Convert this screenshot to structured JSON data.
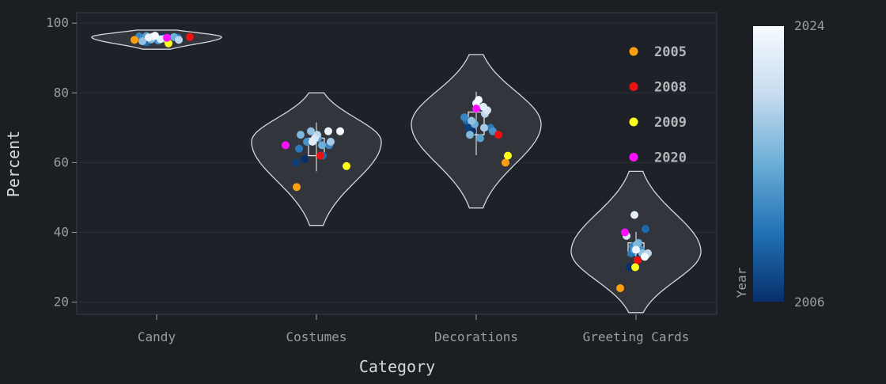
{
  "chart_data": {
    "type": "violin",
    "xlabel": "Category",
    "ylabel": "Percent",
    "ylim": [
      16.5,
      103
    ],
    "yticks": [
      20,
      40,
      60,
      80,
      100
    ],
    "categories": [
      "Candy",
      "Costumes",
      "Decorations",
      "Greeting Cards"
    ],
    "violins": [
      {
        "category": "Candy",
        "min": 92.5,
        "max": 98,
        "q1": 95,
        "median": 95.5,
        "q3": 96,
        "peak": 96
      },
      {
        "category": "Costumes",
        "min": 42,
        "max": 80,
        "q1": 62,
        "median": 65.5,
        "q3": 67,
        "peak": 66
      },
      {
        "category": "Decorations",
        "min": 47,
        "max": 91,
        "q1": 68,
        "median": 70,
        "q3": 74.5,
        "peak": 71
      },
      {
        "category": "Greeting Cards",
        "min": 17,
        "max": 57.5,
        "q1": 33.5,
        "median": 35,
        "q3": 37,
        "peak": 34.5
      }
    ],
    "points": [
      {
        "category": "Candy",
        "year": 2005,
        "value": 95.2,
        "jitter": -0.28
      },
      {
        "category": "Candy",
        "year": 2008,
        "value": 96.0,
        "jitter": 0.42
      },
      {
        "category": "Candy",
        "year": 2009,
        "value": 94.2,
        "jitter": 0.15
      },
      {
        "category": "Candy",
        "year": 2020,
        "value": 95.8,
        "jitter": 0.13
      },
      {
        "category": "Candy",
        "year": 2006,
        "value": 96.0,
        "jitter": 0.07
      },
      {
        "category": "Candy",
        "year": 2007,
        "value": 95.5,
        "jitter": -0.03
      },
      {
        "category": "Candy",
        "year": 2010,
        "value": 94.5,
        "jitter": -0.13
      },
      {
        "category": "Candy",
        "year": 2011,
        "value": 95.8,
        "jitter": 0.27
      },
      {
        "category": "Candy",
        "year": 2012,
        "value": 96.2,
        "jitter": -0.22
      },
      {
        "category": "Candy",
        "year": 2013,
        "value": 95.0,
        "jitter": 0.02
      },
      {
        "category": "Candy",
        "year": 2014,
        "value": 96.3,
        "jitter": -0.13
      },
      {
        "category": "Candy",
        "year": 2015,
        "value": 96.0,
        "jitter": 0.22
      },
      {
        "category": "Candy",
        "year": 2016,
        "value": 95.3,
        "jitter": -0.07
      },
      {
        "category": "Candy",
        "year": 2017,
        "value": 94.8,
        "jitter": -0.18
      },
      {
        "category": "Candy",
        "year": 2018,
        "value": 95.6,
        "jitter": 0.1
      },
      {
        "category": "Candy",
        "year": 2019,
        "value": 95.2,
        "jitter": 0.28
      },
      {
        "category": "Candy",
        "year": 2021,
        "value": 96.1,
        "jitter": -0.05
      },
      {
        "category": "Candy",
        "year": 2022,
        "value": 95.4,
        "jitter": 0.05
      },
      {
        "category": "Candy",
        "year": 2023,
        "value": 95.9,
        "jitter": -0.1
      },
      {
        "category": "Candy",
        "year": 2024,
        "value": 96.4,
        "jitter": -0.02
      },
      {
        "category": "Costumes",
        "year": 2005,
        "value": 53.0,
        "jitter": -0.25
      },
      {
        "category": "Costumes",
        "year": 2008,
        "value": 62.0,
        "jitter": 0.05
      },
      {
        "category": "Costumes",
        "year": 2009,
        "value": 59.0,
        "jitter": 0.38
      },
      {
        "category": "Costumes",
        "year": 2020,
        "value": 65.0,
        "jitter": -0.39
      },
      {
        "category": "Costumes",
        "year": 2006,
        "value": 61.0,
        "jitter": -0.15
      },
      {
        "category": "Costumes",
        "year": 2007,
        "value": 60.0,
        "jitter": -0.26
      },
      {
        "category": "Costumes",
        "year": 2010,
        "value": 62.0,
        "jitter": 0.08
      },
      {
        "category": "Costumes",
        "year": 2011,
        "value": 64.0,
        "jitter": -0.22
      },
      {
        "category": "Costumes",
        "year": 2012,
        "value": 65.0,
        "jitter": 0.16
      },
      {
        "category": "Costumes",
        "year": 2013,
        "value": 66.0,
        "jitter": -0.12
      },
      {
        "category": "Costumes",
        "year": 2014,
        "value": 67.0,
        "jitter": 0.02
      },
      {
        "category": "Costumes",
        "year": 2015,
        "value": 65.0,
        "jitter": 0.07
      },
      {
        "category": "Costumes",
        "year": 2016,
        "value": 68.0,
        "jitter": -0.2
      },
      {
        "category": "Costumes",
        "year": 2017,
        "value": 69.0,
        "jitter": -0.07
      },
      {
        "category": "Costumes",
        "year": 2018,
        "value": 66.0,
        "jitter": 0.18
      },
      {
        "category": "Costumes",
        "year": 2019,
        "value": 68.0,
        "jitter": 0.01
      },
      {
        "category": "Costumes",
        "year": 2021,
        "value": 67.0,
        "jitter": -0.02
      },
      {
        "category": "Costumes",
        "year": 2022,
        "value": 66.0,
        "jitter": -0.05
      },
      {
        "category": "Costumes",
        "year": 2023,
        "value": 69.0,
        "jitter": 0.15
      },
      {
        "category": "Costumes",
        "year": 2024,
        "value": 69.0,
        "jitter": 0.3
      },
      {
        "category": "Decorations",
        "year": 2005,
        "value": 60.0,
        "jitter": 0.37
      },
      {
        "category": "Decorations",
        "year": 2008,
        "value": 68.0,
        "jitter": 0.28
      },
      {
        "category": "Decorations",
        "year": 2009,
        "value": 62.0,
        "jitter": 0.4
      },
      {
        "category": "Decorations",
        "year": 2020,
        "value": 75.5,
        "jitter": 0.0
      },
      {
        "category": "Decorations",
        "year": 2006,
        "value": 69.0,
        "jitter": -0.05
      },
      {
        "category": "Decorations",
        "year": 2007,
        "value": 70.0,
        "jitter": -0.1
      },
      {
        "category": "Decorations",
        "year": 2010,
        "value": 72.0,
        "jitter": -0.12
      },
      {
        "category": "Decorations",
        "year": 2011,
        "value": 70.0,
        "jitter": 0.18
      },
      {
        "category": "Decorations",
        "year": 2012,
        "value": 73.0,
        "jitter": -0.15
      },
      {
        "category": "Decorations",
        "year": 2013,
        "value": 69.0,
        "jitter": 0.21
      },
      {
        "category": "Decorations",
        "year": 2014,
        "value": 67.0,
        "jitter": 0.05
      },
      {
        "category": "Decorations",
        "year": 2015,
        "value": 71.0,
        "jitter": -0.02
      },
      {
        "category": "Decorations",
        "year": 2016,
        "value": 68.0,
        "jitter": -0.08
      },
      {
        "category": "Decorations",
        "year": 2017,
        "value": 72.0,
        "jitter": -0.06
      },
      {
        "category": "Decorations",
        "year": 2018,
        "value": 70.0,
        "jitter": 0.1
      },
      {
        "category": "Decorations",
        "year": 2019,
        "value": 74.0,
        "jitter": 0.11
      },
      {
        "category": "Decorations",
        "year": 2021,
        "value": 75.0,
        "jitter": 0.14
      },
      {
        "category": "Decorations",
        "year": 2022,
        "value": 76.0,
        "jitter": 0.09
      },
      {
        "category": "Decorations",
        "year": 2023,
        "value": 77.0,
        "jitter": 0.0
      },
      {
        "category": "Decorations",
        "year": 2024,
        "value": 78.0,
        "jitter": 0.03
      },
      {
        "category": "Greeting Cards",
        "year": 2005,
        "value": 24.0,
        "jitter": -0.2
      },
      {
        "category": "Greeting Cards",
        "year": 2008,
        "value": 32.0,
        "jitter": 0.02
      },
      {
        "category": "Greeting Cards",
        "year": 2009,
        "value": 30.0,
        "jitter": -0.01
      },
      {
        "category": "Greeting Cards",
        "year": 2020,
        "value": 40.0,
        "jitter": -0.14
      },
      {
        "category": "Greeting Cards",
        "year": 2006,
        "value": 30.0,
        "jitter": -0.08
      },
      {
        "category": "Greeting Cards",
        "year": 2007,
        "value": 33.0,
        "jitter": 0.05
      },
      {
        "category": "Greeting Cards",
        "year": 2010,
        "value": 41.0,
        "jitter": 0.12
      },
      {
        "category": "Greeting Cards",
        "year": 2011,
        "value": 34.0,
        "jitter": -0.06
      },
      {
        "category": "Greeting Cards",
        "year": 2012,
        "value": 36.0,
        "jitter": -0.04
      },
      {
        "category": "Greeting Cards",
        "year": 2013,
        "value": 35.0,
        "jitter": 0.06
      },
      {
        "category": "Greeting Cards",
        "year": 2014,
        "value": 35.0,
        "jitter": -0.02
      },
      {
        "category": "Greeting Cards",
        "year": 2015,
        "value": 37.0,
        "jitter": 0.03
      },
      {
        "category": "Greeting Cards",
        "year": 2016,
        "value": 36.5,
        "jitter": 0.01
      },
      {
        "category": "Greeting Cards",
        "year": 2017,
        "value": 34.0,
        "jitter": 0.08
      },
      {
        "category": "Greeting Cards",
        "year": 2018,
        "value": 33.5,
        "jitter": 0.13
      },
      {
        "category": "Greeting Cards",
        "year": 2019,
        "value": 34.0,
        "jitter": 0.15
      },
      {
        "category": "Greeting Cards",
        "year": 2021,
        "value": 39.0,
        "jitter": -0.12
      },
      {
        "category": "Greeting Cards",
        "year": 2022,
        "value": 45.0,
        "jitter": -0.02
      },
      {
        "category": "Greeting Cards",
        "year": 2023,
        "value": 35.0,
        "jitter": 0.0
      },
      {
        "category": "Greeting Cards",
        "year": 2024,
        "value": 33.0,
        "jitter": 0.11
      }
    ],
    "highlight_legend": [
      {
        "year": "2005",
        "color": "#ff9f0f"
      },
      {
        "year": "2008",
        "color": "#ee1111"
      },
      {
        "year": "2009",
        "color": "#ffff19"
      },
      {
        "year": "2020",
        "color": "#ff10ff"
      }
    ],
    "colorbar": {
      "label": "Year",
      "min_label": "2006",
      "max_label": "2024",
      "min": 2006,
      "max": 2024,
      "colors": [
        "#08306b",
        "#2171b5",
        "#6baed6",
        "#c6dbef",
        "#f7fbff"
      ]
    },
    "grid": true
  }
}
